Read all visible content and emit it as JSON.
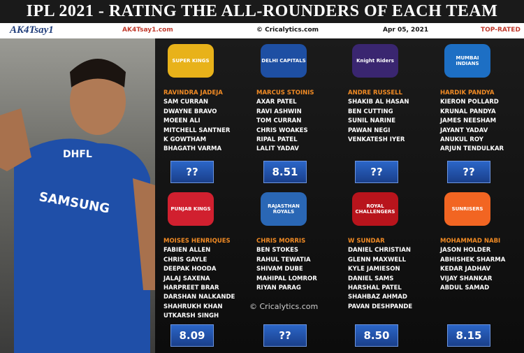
{
  "header": {
    "title": "IPL 2021 - RATING THE ALL-ROUNDERS OF EACH TEAM",
    "brand": "AK4Tsay1",
    "site": "AK4Tsay1.com",
    "source": "© Cricalytics.com",
    "date": "Apr 05, 2021",
    "tag": "TOP-RATED"
  },
  "photo": {
    "texts": [
      "DHFL",
      "SAMSUNG"
    ]
  },
  "watermark": "© Cricalytics.com",
  "teams": [
    {
      "logo": "SUPER KINGS",
      "captain": "RAVINDRA JADEJA",
      "players": [
        "SAM CURRAN",
        "DWAYNE BRAVO",
        "MOEEN ALI",
        "MITCHELL SANTNER",
        "K GOWTHAM",
        "BHAGATH VARMA"
      ],
      "rating": "??"
    },
    {
      "logo": "DELHI CAPITALS",
      "captain": "MARCUS STOINIS",
      "players": [
        "AXAR PATEL",
        "RAVI ASHWIN",
        "TOM CURRAN",
        "CHRIS WOAKES",
        "RIPAL PATEL",
        "LALIT YADAV"
      ],
      "rating": "8.51"
    },
    {
      "logo": "Knight Riders",
      "captain": "ANDRE RUSSELL",
      "players": [
        "SHAKIB AL HASAN",
        "BEN CUTTING",
        "SUNIL NARINE",
        "PAWAN NEGI",
        "VENKATESH IYER"
      ],
      "rating": "??"
    },
    {
      "logo": "MUMBAI INDIANS",
      "captain": "HARDIK PANDYA",
      "players": [
        "KIERON POLLARD",
        "KRUNAL PANDYA",
        "JAMES NEESHAM",
        "JAYANT YADAV",
        "ANUKUL ROY",
        "ARJUN TENDULKAR"
      ],
      "rating": "??"
    },
    {
      "logo": "PUNJAB KINGS",
      "captain": "MOISES HENRIQUES",
      "players": [
        "FABIEN ALLEN",
        "CHRIS GAYLE",
        "DEEPAK HOODA",
        "JALAJ SAXENA",
        "HARPREET BRAR",
        "DARSHAN NALKANDE",
        "SHAHRUKH KHAN",
        "UTKARSH SINGH"
      ],
      "rating": "8.09"
    },
    {
      "logo": "RAJASTHAN ROYALS",
      "captain": "CHRIS MORRIS",
      "players": [
        "BEN STOKES",
        "RAHUL TEWATIA",
        "SHIVAM DUBE",
        "MAHIPAL LOMROR",
        "RIYAN PARAG"
      ],
      "rating": "??"
    },
    {
      "logo": "ROYAL CHALLENGERS",
      "captain": "W SUNDAR",
      "players": [
        "DANIEL CHRISTIAN",
        "GLENN MAXWELL",
        "KYLE JAMIESON",
        "DANIEL SAMS",
        "HARSHAL PATEL",
        "SHAHBAZ AHMAD",
        "PAVAN DESHPANDE"
      ],
      "rating": "8.50"
    },
    {
      "logo": "SUNRISERS",
      "captain": "MOHAMMAD NABI",
      "players": [
        "JASON HOLDER",
        "ABHISHEK SHARMA",
        "KEDAR JADHAV",
        "VIJAY SHANKAR",
        "ABDUL SAMAD"
      ],
      "rating": "8.15"
    }
  ]
}
